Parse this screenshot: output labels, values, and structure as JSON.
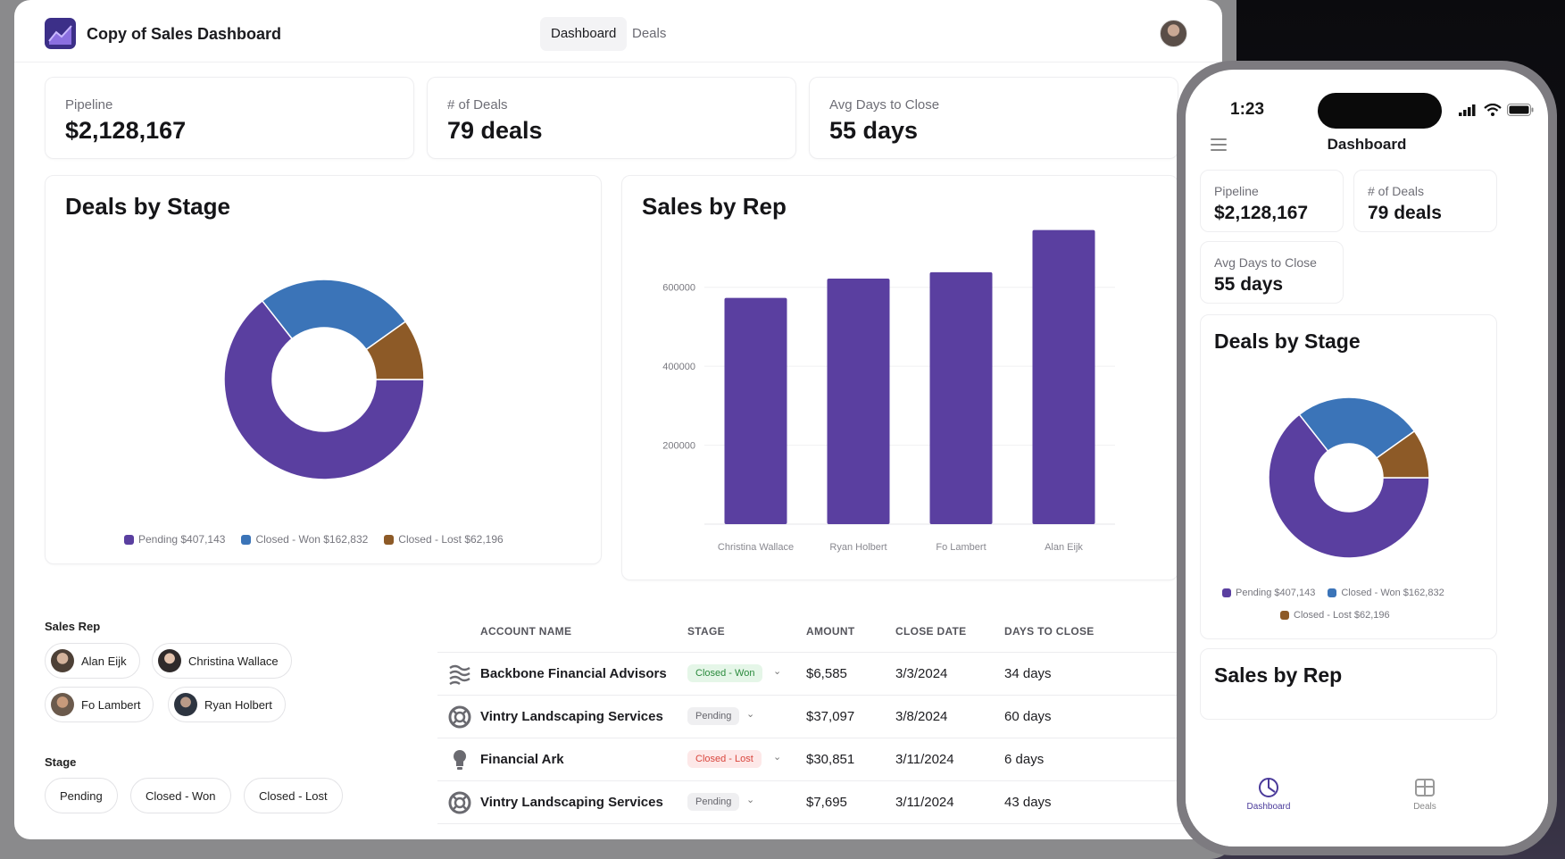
{
  "app": {
    "title": "Copy of Sales Dashboard",
    "nav_tabs": [
      {
        "label": "Dashboard",
        "active": true
      },
      {
        "label": "Deals",
        "active": false
      }
    ]
  },
  "kpis": [
    {
      "label": "Pipeline",
      "value": "$2,128,167"
    },
    {
      "label": "# of Deals",
      "value": "79 deals"
    },
    {
      "label": "Avg Days to Close",
      "value": "55 days"
    }
  ],
  "deals_by_stage": {
    "title": "Deals by Stage",
    "legend": [
      {
        "label": "Pending $407,143",
        "color": "#5a3fa0"
      },
      {
        "label": "Closed - Won $162,832",
        "color": "#3b74b8"
      },
      {
        "label": "Closed - Lost $62,196",
        "color": "#8d5a27"
      }
    ]
  },
  "sales_by_rep": {
    "title": "Sales by Rep"
  },
  "chart_data": [
    {
      "type": "pie",
      "title": "Deals by Stage",
      "categories": [
        "Pending",
        "Closed - Won",
        "Closed - Lost"
      ],
      "values": [
        407143,
        162832,
        62196
      ],
      "colors": [
        "#5a3fa0",
        "#3b74b8",
        "#8d5a27"
      ],
      "donut": true
    },
    {
      "type": "bar",
      "title": "Sales by Rep",
      "categories": [
        "Christina Wallace",
        "Ryan Holbert",
        "Fo Lambert",
        "Alan Eijk"
      ],
      "values": [
        573000,
        622000,
        638000,
        745000
      ],
      "ylim": [
        0,
        760000
      ],
      "yticks": [
        200000,
        400000,
        600000
      ],
      "ytick_labels": [
        "200000",
        "400000",
        "600000"
      ],
      "color": "#5a3fa0",
      "grid": true
    }
  ],
  "filters": {
    "sales_rep": {
      "label": "Sales Rep",
      "options": [
        "Alan Eijk",
        "Christina Wallace",
        "Fo Lambert",
        "Ryan Holbert"
      ]
    },
    "stage": {
      "label": "Stage",
      "options": [
        "Pending",
        "Closed - Won",
        "Closed - Lost"
      ]
    }
  },
  "table": {
    "headers": [
      "ACCOUNT NAME",
      "STAGE",
      "AMOUNT",
      "CLOSE DATE",
      "DAYS TO CLOSE"
    ],
    "rows": [
      {
        "account": "Backbone Financial Advisors",
        "stage": "Closed - Won",
        "amount": "$6,585",
        "close_date": "3/3/2024",
        "days": "34 days",
        "icon": "waves-icon"
      },
      {
        "account": "Vintry Landscaping Services",
        "stage": "Pending",
        "amount": "$37,097",
        "close_date": "3/8/2024",
        "days": "60 days",
        "icon": "lifebuoy-icon"
      },
      {
        "account": "Financial Ark",
        "stage": "Closed - Lost",
        "amount": "$30,851",
        "close_date": "3/11/2024",
        "days": "6 days",
        "icon": "lightbulb-icon"
      },
      {
        "account": "Vintry Landscaping Services",
        "stage": "Pending",
        "amount": "$7,695",
        "close_date": "3/11/2024",
        "days": "43 days",
        "icon": "lifebuoy-icon"
      }
    ]
  },
  "phone": {
    "time": "1:23",
    "title": "Dashboard",
    "deals_by_stage_title": "Deals by Stage",
    "sales_by_rep_title": "Sales by Rep",
    "tabs": [
      {
        "label": "Dashboard",
        "active": true
      },
      {
        "label": "Deals",
        "active": false
      }
    ]
  }
}
